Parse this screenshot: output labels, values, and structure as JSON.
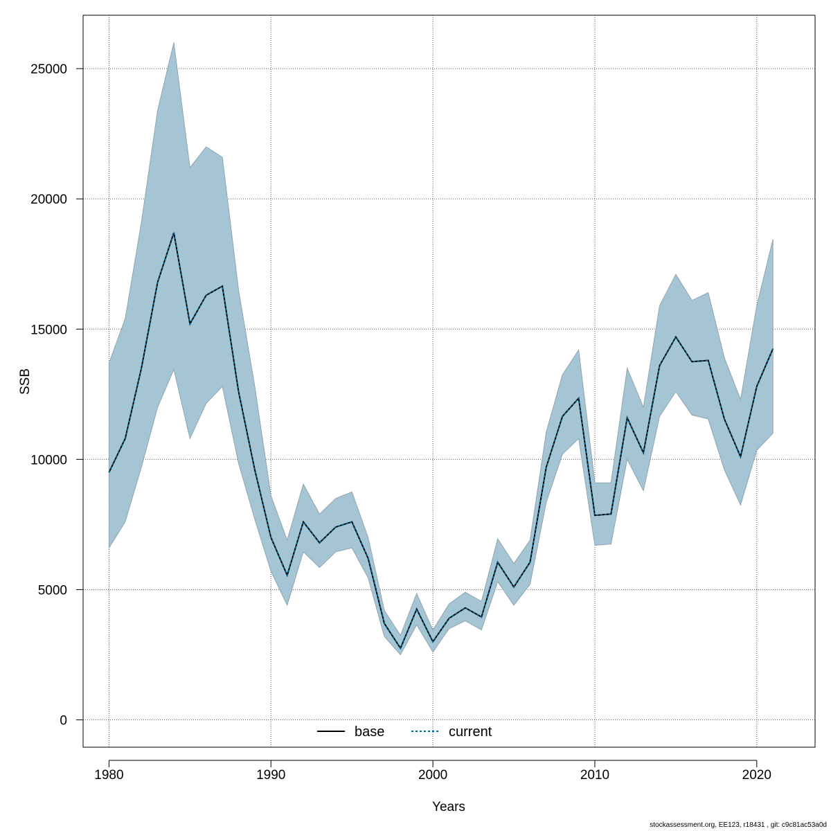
{
  "chart_data": {
    "type": "line",
    "title": "",
    "xlabel": "Years",
    "ylabel": "SSB",
    "xlim": [
      1978.4,
      2023.6
    ],
    "ylim": [
      -1050,
      27050
    ],
    "x_ticks": [
      1980,
      1990,
      2000,
      2010,
      2020
    ],
    "y_ticks": [
      0,
      5000,
      10000,
      15000,
      20000,
      25000
    ],
    "grid": true,
    "legend_position": "bottom-center",
    "x": [
      1980,
      1981,
      1982,
      1983,
      1984,
      1985,
      1986,
      1987,
      1988,
      1989,
      1990,
      1991,
      1992,
      1993,
      1994,
      1995,
      1996,
      1997,
      1998,
      1999,
      2000,
      2001,
      2002,
      2003,
      2004,
      2005,
      2006,
      2007,
      2008,
      2009,
      2010,
      2011,
      2012,
      2013,
      2014,
      2015,
      2016,
      2017,
      2018,
      2019,
      2020,
      2021
    ],
    "series": [
      {
        "name": "base",
        "line_style": "solid",
        "color": "#000000",
        "values": [
          9500,
          10800,
          13500,
          16800,
          18700,
          15200,
          16300,
          16650,
          12600,
          9600,
          7000,
          5550,
          7600,
          6800,
          7400,
          7600,
          6200,
          3700,
          2750,
          4250,
          3000,
          3900,
          4300,
          3950,
          6050,
          5100,
          6050,
          9700,
          11650,
          12350,
          7850,
          7900,
          11600,
          10250,
          13600,
          14700,
          13750,
          13800,
          11550,
          10100,
          12800,
          14250
        ]
      },
      {
        "name": "current",
        "line_style": "dotted",
        "color": "#00618a",
        "values": [
          9500,
          10800,
          13500,
          16800,
          18700,
          15200,
          16300,
          16650,
          12600,
          9600,
          7000,
          5550,
          7600,
          6800,
          7400,
          7600,
          6200,
          3700,
          2750,
          4250,
          3000,
          3900,
          4300,
          3950,
          6050,
          5100,
          6050,
          9700,
          11650,
          12350,
          7850,
          7900,
          11600,
          10250,
          13600,
          14700,
          13750,
          13800,
          11550,
          10100,
          12800,
          14250
        ]
      }
    ],
    "confidence_band": {
      "upper": [
        13700,
        15400,
        19100,
        23400,
        26000,
        21200,
        22000,
        21600,
        16500,
        12800,
        8600,
        6900,
        9050,
        7900,
        8500,
        8750,
        7000,
        4200,
        3250,
        4850,
        3450,
        4450,
        4900,
        4550,
        6950,
        6000,
        6900,
        11050,
        13250,
        14200,
        9100,
        9100,
        13500,
        12000,
        15900,
        17100,
        16100,
        16400,
        13900,
        12300,
        15900,
        18450
      ],
      "lower": [
        6600,
        7600,
        9700,
        12000,
        13450,
        10800,
        12150,
        12800,
        9850,
        7700,
        5700,
        4400,
        6450,
        5850,
        6450,
        6600,
        5450,
        3200,
        2500,
        3650,
        2600,
        3500,
        3800,
        3450,
        5300,
        4400,
        5200,
        8350,
        10200,
        10800,
        6700,
        6750,
        10000,
        8800,
        11650,
        12600,
        11700,
        11550,
        9600,
        8250,
        10350,
        11000
      ],
      "color": "#a5c4d4"
    },
    "footnote": "stockassessment.org, EE123, r18431 , git: c9c81ac53a0d"
  }
}
